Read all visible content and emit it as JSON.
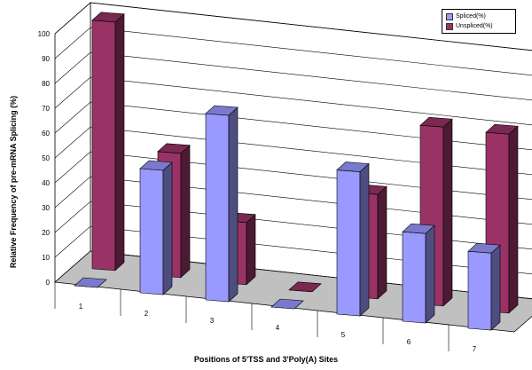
{
  "chart_data": {
    "type": "bar",
    "variant": "3d-clustered-column",
    "title": "",
    "xlabel": "Positions of 5'TSS and 3'Poly(A) Sites",
    "ylabel": "Relative Frequency of pre-mRNA Splicing (%)",
    "ylim": [
      0,
      100
    ],
    "yticks": [
      0,
      10,
      20,
      30,
      40,
      50,
      60,
      70,
      80,
      90,
      100
    ],
    "categories": [
      "1",
      "2",
      "3",
      "4",
      "5",
      "6",
      "7"
    ],
    "series": [
      {
        "name": "Spliced(%)",
        "color": "#9999ff",
        "values": [
          0,
          50,
          75,
          0,
          58,
          36,
          31
        ]
      },
      {
        "name": "Unspliced(%)",
        "color": "#993366",
        "values": [
          100,
          50,
          25,
          0,
          42,
          72,
          72
        ]
      }
    ],
    "legend_position": "top-right",
    "grid": true
  }
}
